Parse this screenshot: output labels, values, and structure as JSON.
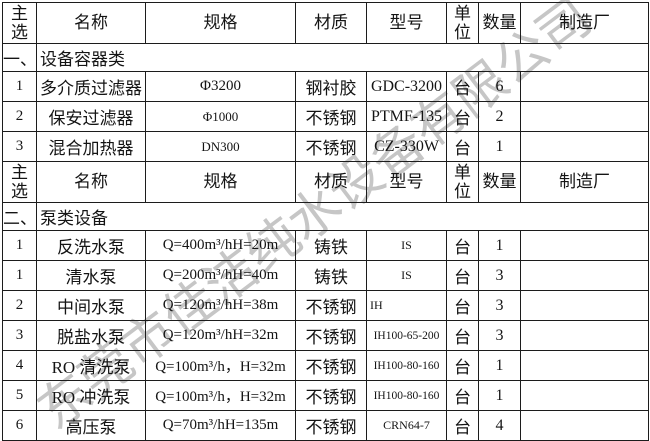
{
  "watermark": {
    "text": "东莞市佳洁纯水设备有限公司",
    "color": "#bdbdbd"
  },
  "colors": {
    "text": "#141414",
    "border": "#1c1c1c",
    "watermark": "#bdbdbd"
  },
  "table": {
    "columns": [
      {
        "key": "main",
        "label": "主选"
      },
      {
        "key": "name",
        "label": "名称"
      },
      {
        "key": "spec",
        "label": "规格"
      },
      {
        "key": "material",
        "label": "材质"
      },
      {
        "key": "model",
        "label": "型号"
      },
      {
        "key": "unit",
        "label": "单位"
      },
      {
        "key": "qty",
        "label": "数量"
      },
      {
        "key": "maker",
        "label": "制造厂"
      }
    ],
    "sections": [
      {
        "index_label": "一、",
        "title": "设备容器类",
        "rows": [
          {
            "no": "1",
            "name": "多介质过滤器",
            "spec": "Φ3200",
            "spec_size": "normal",
            "material": "钢衬胶",
            "model": "GDC-3200",
            "model_size": "normal",
            "model_align": "center",
            "unit": "台",
            "qty": "6",
            "maker": ""
          },
          {
            "no": "2",
            "name": "保安过滤器",
            "spec": "Φ1000",
            "spec_size": "small",
            "material": "不锈钢",
            "model": "PTMF-135",
            "model_size": "normal",
            "model_align": "center",
            "unit": "台",
            "qty": "2",
            "maker": ""
          },
          {
            "no": "3",
            "name": "混合加热器",
            "spec": "DN300",
            "spec_size": "small",
            "material": "不锈钢",
            "model": "CZ-330W",
            "model_size": "normal",
            "model_align": "center",
            "unit": "台",
            "qty": "1",
            "maker": ""
          }
        ]
      },
      {
        "index_label": "二、",
        "title": "泵类设备",
        "rows": [
          {
            "no": "1",
            "name": "反洗水泵",
            "spec": "Q=400m³/hH=20m",
            "spec_size": "normal",
            "material": "铸铁",
            "model": "IS",
            "model_size": "small",
            "model_align": "center",
            "unit": "台",
            "qty": "1",
            "maker": ""
          },
          {
            "no": "1",
            "name": "清水泵",
            "spec": "Q=200m³/hH=40m",
            "spec_size": "normal",
            "material": "铸铁",
            "model": "IS",
            "model_size": "small",
            "model_align": "center",
            "unit": "台",
            "qty": "3",
            "maker": ""
          },
          {
            "no": "2",
            "name": "中间水泵",
            "spec": "Q=120m³/hH=38m",
            "spec_size": "normal",
            "material": "不锈钢",
            "model": "IH",
            "model_size": "small",
            "model_align": "left",
            "unit": "台",
            "qty": "3",
            "maker": ""
          },
          {
            "no": "3",
            "name": "脱盐水泵",
            "spec": "Q=120m³/hH=32m",
            "spec_size": "normal",
            "material": "不锈钢",
            "model": "IH100-65-200",
            "model_size": "xsmall",
            "model_align": "center",
            "unit": "台",
            "qty": "3",
            "maker": ""
          },
          {
            "no": "4",
            "name": "RO 清洗泵",
            "spec": "Q=100m³/h，H=32m",
            "spec_size": "normal",
            "material": "不锈钢",
            "model": "IH100-80-160",
            "model_size": "xsmall",
            "model_align": "center",
            "unit": "台",
            "qty": "1",
            "maker": ""
          },
          {
            "no": "5",
            "name": "RO 冲洗泵",
            "spec": "Q=100m³/h，H=32m",
            "spec_size": "normal",
            "material": "不锈钢",
            "model": "IH100-80-160",
            "model_size": "xsmall",
            "model_align": "center",
            "unit": "台",
            "qty": "1",
            "maker": ""
          },
          {
            "no": "6",
            "name": "高压泵",
            "spec": "Q=70m³/hH=135m",
            "spec_size": "normal",
            "material": "不锈钢",
            "model": "CRN64-7",
            "model_size": "small",
            "model_align": "center",
            "unit": "台",
            "qty": "4",
            "maker": ""
          }
        ]
      }
    ]
  }
}
